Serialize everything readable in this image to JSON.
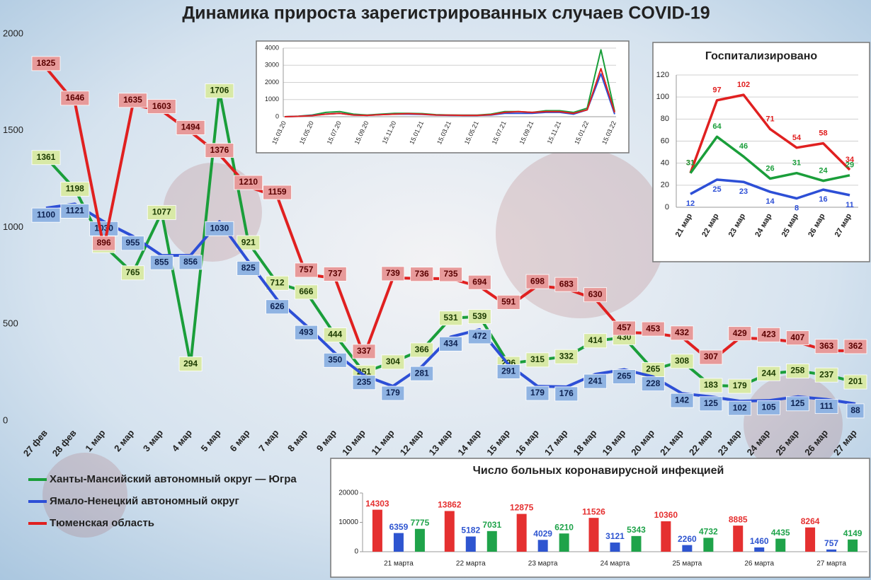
{
  "chart_data": [
    {
      "type": "line",
      "title": "Динамика прироста зарегистрированных случаев COVID-19",
      "categories": [
        "27 фев",
        "28 фев",
        "1 мар",
        "2 мар",
        "3 мар",
        "4 мар",
        "5 мар",
        "6 мар",
        "7 мар",
        "8 мар",
        "9 мар",
        "10 мар",
        "11 мар",
        "12 мар",
        "13 мар",
        "14 мар",
        "15 мар",
        "16 мар",
        "17 мар",
        "18 мар",
        "19 мар",
        "20 мар",
        "21 мар",
        "22 мар",
        "23 мар",
        "24 мар",
        "25 мар",
        "26 мар",
        "27 мар"
      ],
      "series": [
        {
          "name": "Ханты-Мансийский автономный округ — Югра",
          "color": "#1a9e3a",
          "values": [
            1361,
            1198,
            906,
            765,
            1077,
            294,
            1706,
            921,
            712,
            666,
            444,
            251,
            304,
            366,
            531,
            539,
            296,
            315,
            332,
            414,
            430,
            265,
            308,
            183,
            179,
            244,
            258,
            237,
            201
          ]
        },
        {
          "name": "Ямало-Ненецкий автономный округ",
          "color": "#2d4fd6",
          "values": [
            1100,
            1121,
            1030,
            955,
            855,
            856,
            1030,
            825,
            626,
            493,
            350,
            235,
            179,
            281,
            434,
            472,
            291,
            179,
            176,
            241,
            265,
            228,
            142,
            125,
            102,
            105,
            125,
            111,
            88
          ]
        },
        {
          "name": "Тюменская область",
          "color": "#e02020",
          "values": [
            1825,
            1646,
            896,
            1635,
            1603,
            1494,
            1376,
            1210,
            1159,
            757,
            737,
            337,
            739,
            736,
            735,
            694,
            591,
            698,
            683,
            630,
            457,
            453,
            432,
            307,
            429,
            423,
            407,
            363,
            362
          ]
        }
      ],
      "ylim": [
        0,
        2000
      ],
      "yticks": [
        0,
        500,
        1000,
        1500,
        2000
      ],
      "grid": false,
      "legend": "bottom-left"
    },
    {
      "type": "line",
      "categories": [
        "15.03.20",
        null,
        "15.05.20",
        null,
        "15.07.20",
        null,
        "15.09.20",
        null,
        "15.11.20",
        null,
        "15.01.21",
        null,
        "15.03.21",
        null,
        "15.05.21",
        null,
        "15.07.21",
        null,
        "15.09.21",
        null,
        "15.11.21",
        null,
        "15.01.22",
        null,
        "15.03.22"
      ],
      "series": [
        {
          "color": "#1a9e3a",
          "values": [
            0,
            30,
            100,
            250,
            300,
            150,
            100,
            150,
            200,
            200,
            180,
            120,
            100,
            90,
            90,
            150,
            300,
            300,
            250,
            350,
            350,
            250,
            500,
            3900,
            300
          ]
        },
        {
          "color": "#2d4fd6",
          "values": [
            0,
            20,
            80,
            150,
            200,
            100,
            80,
            120,
            150,
            150,
            130,
            90,
            80,
            70,
            70,
            100,
            200,
            200,
            200,
            250,
            250,
            150,
            400,
            2500,
            150
          ]
        },
        {
          "color": "#e02020",
          "values": [
            0,
            20,
            60,
            150,
            200,
            100,
            80,
            120,
            150,
            180,
            150,
            100,
            90,
            80,
            80,
            120,
            250,
            300,
            250,
            300,
            300,
            200,
            400,
            2800,
            250
          ]
        }
      ],
      "ylim": [
        0,
        4000
      ],
      "yticks": [
        0,
        1000,
        2000,
        3000,
        4000
      ],
      "grid": true
    },
    {
      "type": "line",
      "title": "Госпитализировано",
      "categories": [
        "21 мар",
        "22 мар",
        "23 мар",
        "24 мар",
        "25 мар",
        "26 мар",
        "27 мар"
      ],
      "series": [
        {
          "color": "#e02020",
          "values": [
            31,
            97,
            102,
            71,
            54,
            58,
            34
          ]
        },
        {
          "color": "#1a9e3a",
          "values": [
            31,
            64,
            46,
            26,
            31,
            24,
            29
          ]
        },
        {
          "color": "#2d4fd6",
          "values": [
            12,
            25,
            23,
            14,
            8,
            16,
            11
          ]
        }
      ],
      "ylim": [
        0,
        120
      ],
      "yticks": [
        0,
        20,
        40,
        60,
        80,
        100,
        120
      ],
      "grid": true
    },
    {
      "type": "bar",
      "title": "Число больных коронавирусной инфекцией",
      "categories": [
        "21 марта",
        "22 марта",
        "23 марта",
        "24 марта",
        "25 марта",
        "26 марта",
        "27 марта"
      ],
      "series": [
        {
          "color": "#e53030",
          "values": [
            14303,
            13862,
            12875,
            11526,
            10360,
            8885,
            8264
          ]
        },
        {
          "color": "#2e55d0",
          "values": [
            6359,
            5182,
            4029,
            3121,
            2260,
            1460,
            757
          ]
        },
        {
          "color": "#1fa34a",
          "values": [
            7775,
            7031,
            6210,
            5343,
            4732,
            4435,
            4149
          ]
        }
      ],
      "ylim": [
        0,
        20000
      ],
      "yticks": [
        0,
        10000,
        20000
      ],
      "grid": false
    }
  ]
}
